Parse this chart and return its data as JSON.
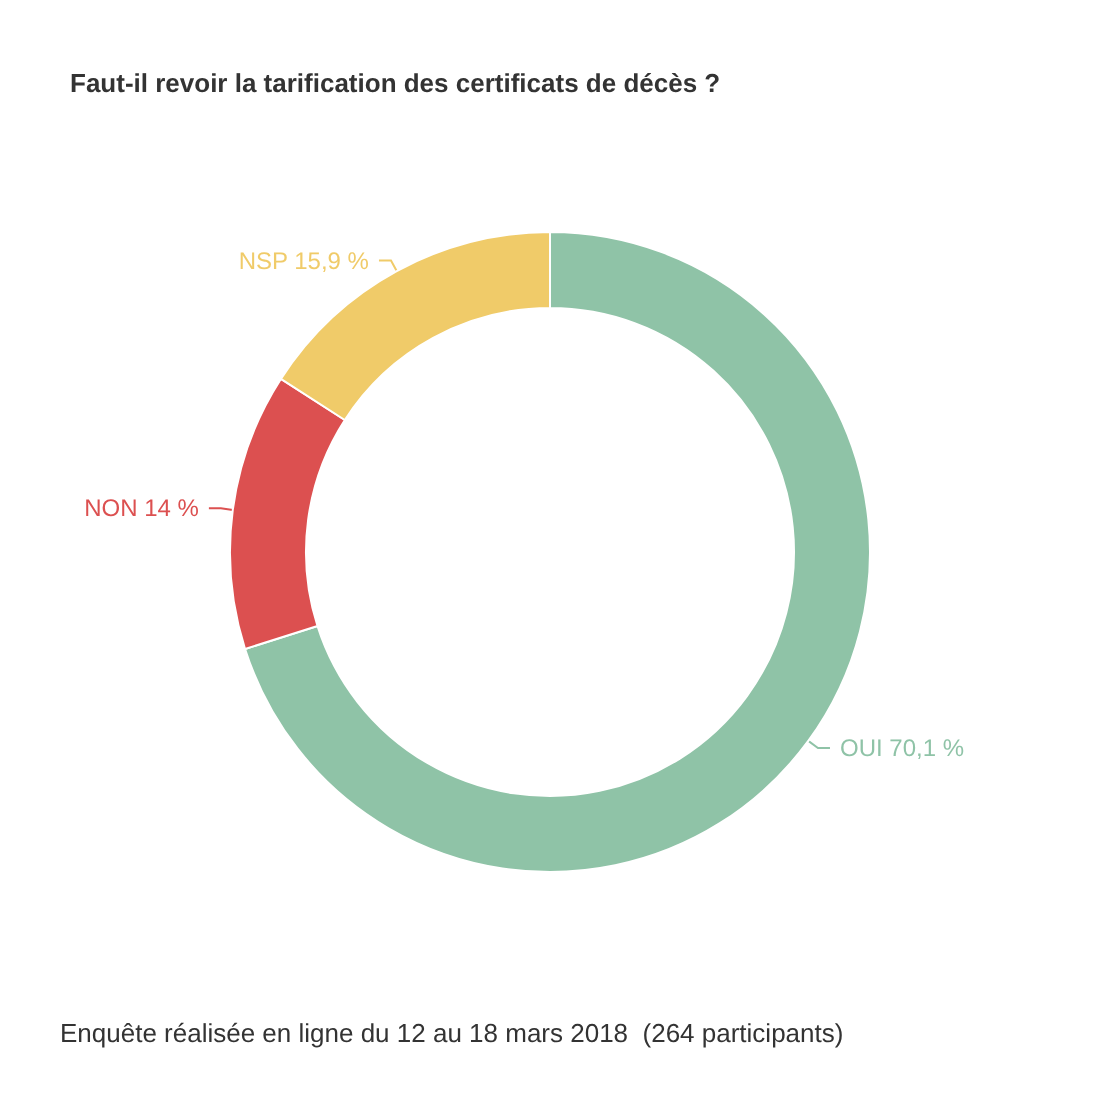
{
  "chart_data": {
    "type": "donut",
    "title": "Faut-il revoir la tarification des certificats de décès ?",
    "categories": [
      "OUI",
      "NON",
      "NSP"
    ],
    "values": [
      70.1,
      14,
      15.9
    ],
    "value_labels": [
      "70,1 %",
      "14 %",
      "15,9 %"
    ],
    "colors": [
      "#8fc3a7",
      "#dc5050",
      "#f0cb69"
    ],
    "annotations": [
      "Enquête réalisée en ligne du 12 au 18 mars 2018  (264 participants)"
    ],
    "legend": false
  }
}
